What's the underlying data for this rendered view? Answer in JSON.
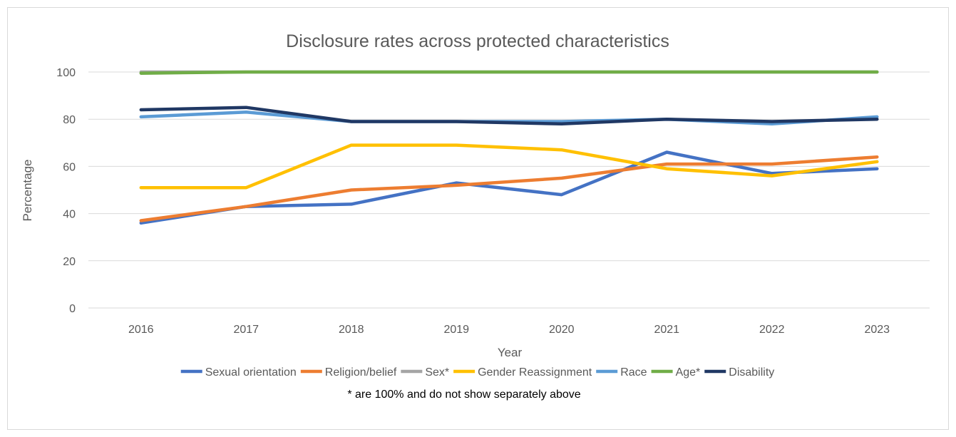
{
  "chart_data": {
    "type": "line",
    "title": "Disclosure rates across protected characteristics",
    "xlabel": "Year",
    "ylabel": "Percentage",
    "ylim": [
      0,
      100
    ],
    "yticks": [
      0,
      20,
      40,
      60,
      80,
      100
    ],
    "categories": [
      "2016",
      "2017",
      "2018",
      "2019",
      "2020",
      "2021",
      "2022",
      "2023"
    ],
    "grid": true,
    "legend_position": "bottom",
    "note": "* are 100% and do not show separately above",
    "series": [
      {
        "name": "Sexual orientation",
        "color": "#4472C4",
        "values": [
          36,
          43,
          44,
          53,
          48,
          66,
          57,
          59
        ]
      },
      {
        "name": "Religion/belief",
        "color": "#ED7D31",
        "values": [
          37,
          43,
          50,
          52,
          55,
          61,
          61,
          64
        ]
      },
      {
        "name": "Sex*",
        "color": "#A5A5A5",
        "values": [
          100,
          100,
          100,
          100,
          100,
          100,
          100,
          100
        ]
      },
      {
        "name": "Gender Reassignment",
        "color": "#FFC000",
        "values": [
          51,
          51,
          69,
          69,
          67,
          59,
          56,
          62
        ]
      },
      {
        "name": "Race",
        "color": "#5B9BD5",
        "values": [
          81,
          83,
          79,
          79,
          79,
          80,
          78,
          81
        ]
      },
      {
        "name": "Age*",
        "color": "#70AD47",
        "values": [
          99.5,
          100,
          100,
          100,
          100,
          100,
          100,
          100
        ]
      },
      {
        "name": "Disability",
        "color": "#203864",
        "values": [
          84,
          85,
          79,
          79,
          78,
          80,
          79,
          80
        ]
      }
    ]
  }
}
